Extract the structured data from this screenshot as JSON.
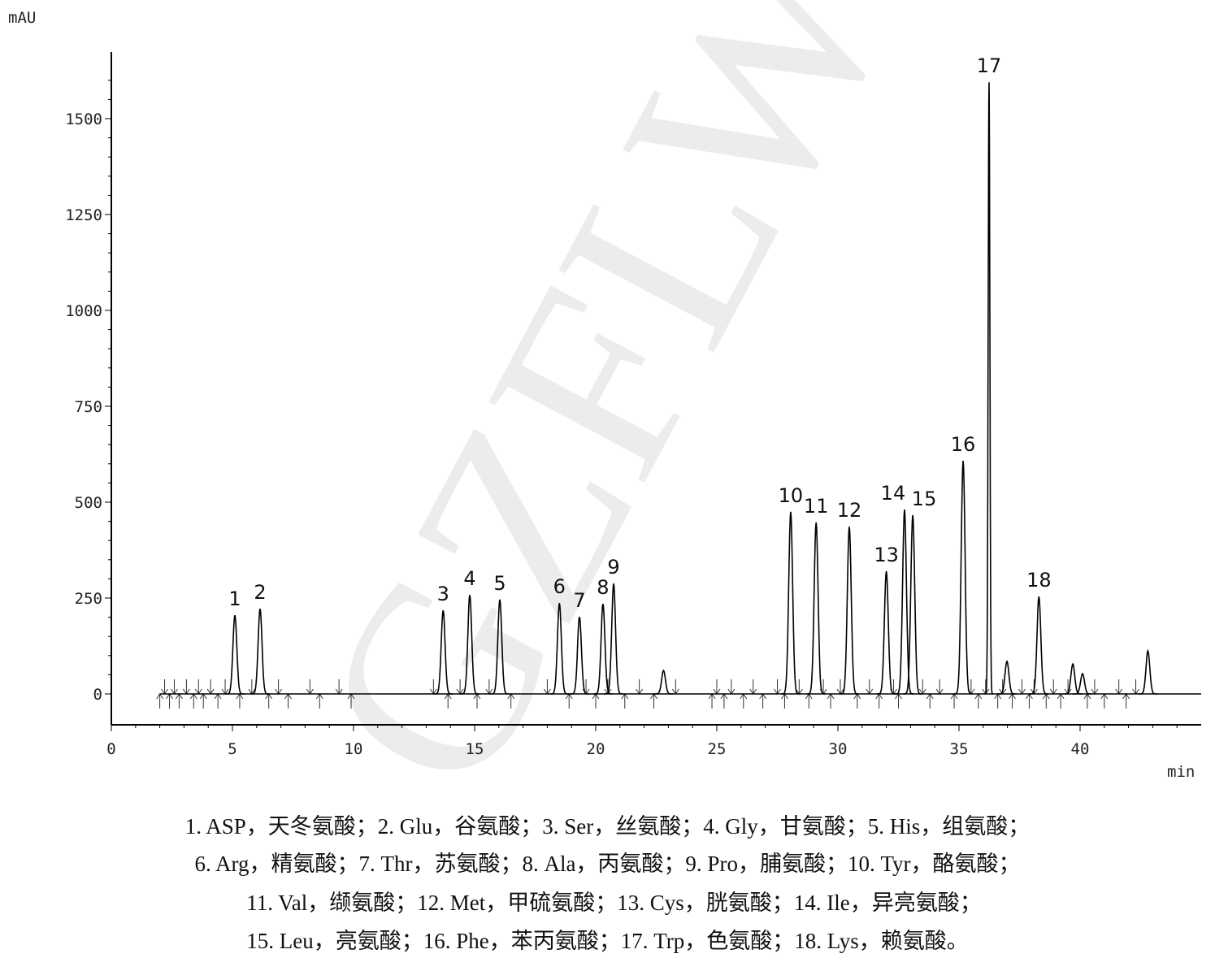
{
  "chart_data": {
    "type": "line",
    "title": "",
    "xlabel": "min",
    "ylabel": "mAU",
    "xlim": [
      0,
      45
    ],
    "ylim": [
      -60,
      1670
    ],
    "xticks": [
      0,
      5,
      10,
      15,
      20,
      25,
      30,
      35,
      40
    ],
    "yticks": [
      0,
      250,
      500,
      750,
      1000,
      1250,
      1500
    ],
    "grid": false,
    "line_color": "#000000",
    "watermark": "GZFLW",
    "peaks": [
      {
        "label": "1",
        "time": 5.1,
        "height": 205
      },
      {
        "label": "2",
        "time": 6.14,
        "height": 222
      },
      {
        "label": "3",
        "time": 13.7,
        "height": 218
      },
      {
        "label": "4",
        "time": 14.8,
        "height": 258
      },
      {
        "label": "5",
        "time": 16.04,
        "height": 246
      },
      {
        "label": "6",
        "time": 18.5,
        "height": 237
      },
      {
        "label": "7",
        "time": 19.33,
        "height": 201
      },
      {
        "label": "8",
        "time": 20.3,
        "height": 235
      },
      {
        "label": "9",
        "time": 20.74,
        "height": 288
      },
      {
        "label": "",
        "time": 22.8,
        "height": 61
      },
      {
        "label": "10",
        "time": 28.05,
        "height": 475
      },
      {
        "label": "11",
        "time": 29.1,
        "height": 447
      },
      {
        "label": "12",
        "time": 30.47,
        "height": 436
      },
      {
        "label": "13",
        "time": 32.0,
        "height": 320
      },
      {
        "label": "14",
        "time": 32.75,
        "height": 481
      },
      {
        "label": "15",
        "time": 33.09,
        "height": 466
      },
      {
        "label": "16",
        "time": 35.17,
        "height": 608
      },
      {
        "label": "17",
        "time": 36.24,
        "height": 1595
      },
      {
        "label": "",
        "time": 36.98,
        "height": 85
      },
      {
        "label": "18",
        "time": 38.3,
        "height": 254
      },
      {
        "label": "",
        "time": 39.7,
        "height": 78
      },
      {
        "label": "",
        "time": 40.1,
        "height": 53
      },
      {
        "label": "",
        "time": 42.8,
        "height": 112
      }
    ],
    "integration_marks_min": [
      2.0,
      2.2,
      2.4,
      2.6,
      2.8,
      3.1,
      3.4,
      3.6,
      3.8,
      4.1,
      4.4,
      4.7,
      5.3,
      5.8,
      6.5,
      6.9,
      7.3,
      8.2,
      8.6,
      9.4,
      9.9,
      13.3,
      13.9,
      14.4,
      15.1,
      15.6,
      16.5,
      18.0,
      18.9,
      19.6,
      20.0,
      20.5,
      21.2,
      21.8,
      22.4,
      23.3,
      24.8,
      25.0,
      25.3,
      25.6,
      26.1,
      26.5,
      26.9,
      27.5,
      27.8,
      28.4,
      28.8,
      29.4,
      29.7,
      30.1,
      30.8,
      31.3,
      31.7,
      32.3,
      32.5,
      33.5,
      33.8,
      34.2,
      34.8,
      35.5,
      35.8,
      36.1,
      36.6,
      36.8,
      37.2,
      37.6,
      37.9,
      38.1,
      38.6,
      38.9,
      39.2,
      39.5,
      40.3,
      40.6,
      41.0,
      41.6,
      41.9,
      42.3
    ]
  },
  "caption": {
    "lines": [
      "1. ASP，天冬氨酸；2. Glu，谷氨酸；3. Ser，丝氨酸；4. Gly，甘氨酸；5. His，组氨酸；",
      "6. Arg，精氨酸；7. Thr，苏氨酸；8. Ala，丙氨酸；9. Pro，脯氨酸；10. Tyr，酪氨酸；",
      "11. Val，缬氨酸；12. Met，甲硫氨酸；13. Cys，胱氨酸；14. Ile，异亮氨酸；",
      "15. Leu，亮氨酸；16. Phe，苯丙氨酸；17. Trp，色氨酸；18. Lys，赖氨酸。"
    ]
  }
}
